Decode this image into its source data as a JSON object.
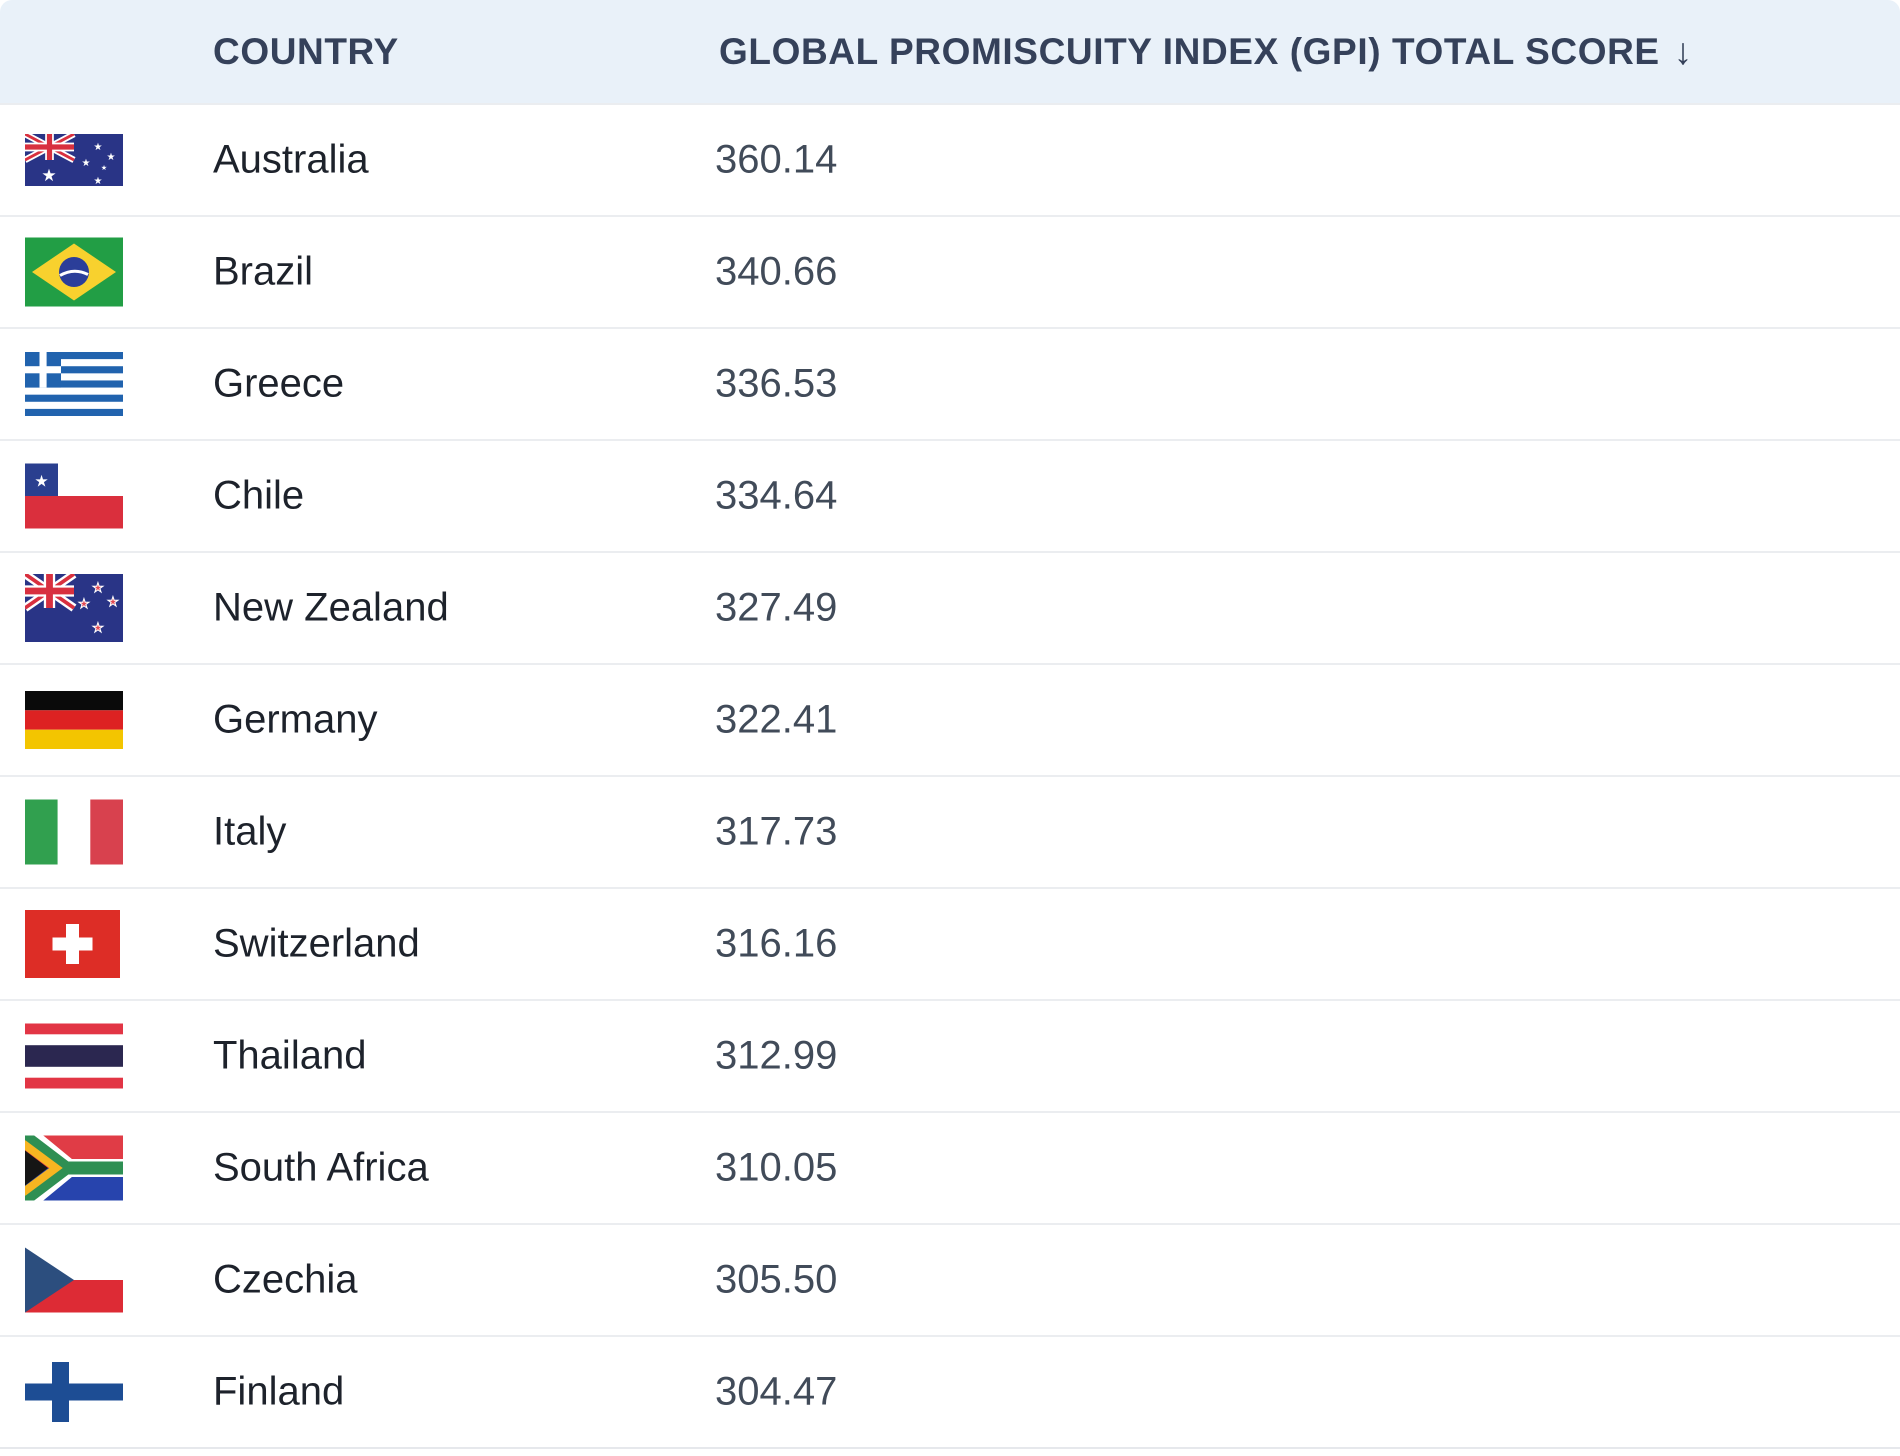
{
  "table": {
    "columns": [
      {
        "label": "COUNTRY",
        "sortable": true
      },
      {
        "label": "GLOBAL PROMISCUITY INDEX (GPI) TOTAL SCORE",
        "sortable": true,
        "sort_icon": "arrow-down-icon",
        "sort_indicator": "↓",
        "sort_direction": "desc"
      }
    ],
    "rows": [
      {
        "country": "Australia",
        "score": "360.14",
        "flag": "australia-flag-icon"
      },
      {
        "country": "Brazil",
        "score": "340.66",
        "flag": "brazil-flag-icon"
      },
      {
        "country": "Greece",
        "score": "336.53",
        "flag": "greece-flag-icon"
      },
      {
        "country": "Chile",
        "score": "334.64",
        "flag": "chile-flag-icon"
      },
      {
        "country": "New Zealand",
        "score": "327.49",
        "flag": "new-zealand-flag-icon"
      },
      {
        "country": "Germany",
        "score": "322.41",
        "flag": "germany-flag-icon"
      },
      {
        "country": "Italy",
        "score": "317.73",
        "flag": "italy-flag-icon"
      },
      {
        "country": "Switzerland",
        "score": "316.16",
        "flag": "switzerland-flag-icon"
      },
      {
        "country": "Thailand",
        "score": "312.99",
        "flag": "thailand-flag-icon"
      },
      {
        "country": "South Africa",
        "score": "310.05",
        "flag": "south-africa-flag-icon"
      },
      {
        "country": "Czechia",
        "score": "305.50",
        "flag": "czechia-flag-icon"
      },
      {
        "country": "Finland",
        "score": "304.47",
        "flag": "finland-flag-icon"
      }
    ]
  },
  "colors": {
    "header_background": "#e9f1f9",
    "header_text": "#35415a",
    "row_background": "#ffffff",
    "row_separator": "#ebedf0",
    "country_text": "#1d222b",
    "score_text": "#414b59"
  }
}
